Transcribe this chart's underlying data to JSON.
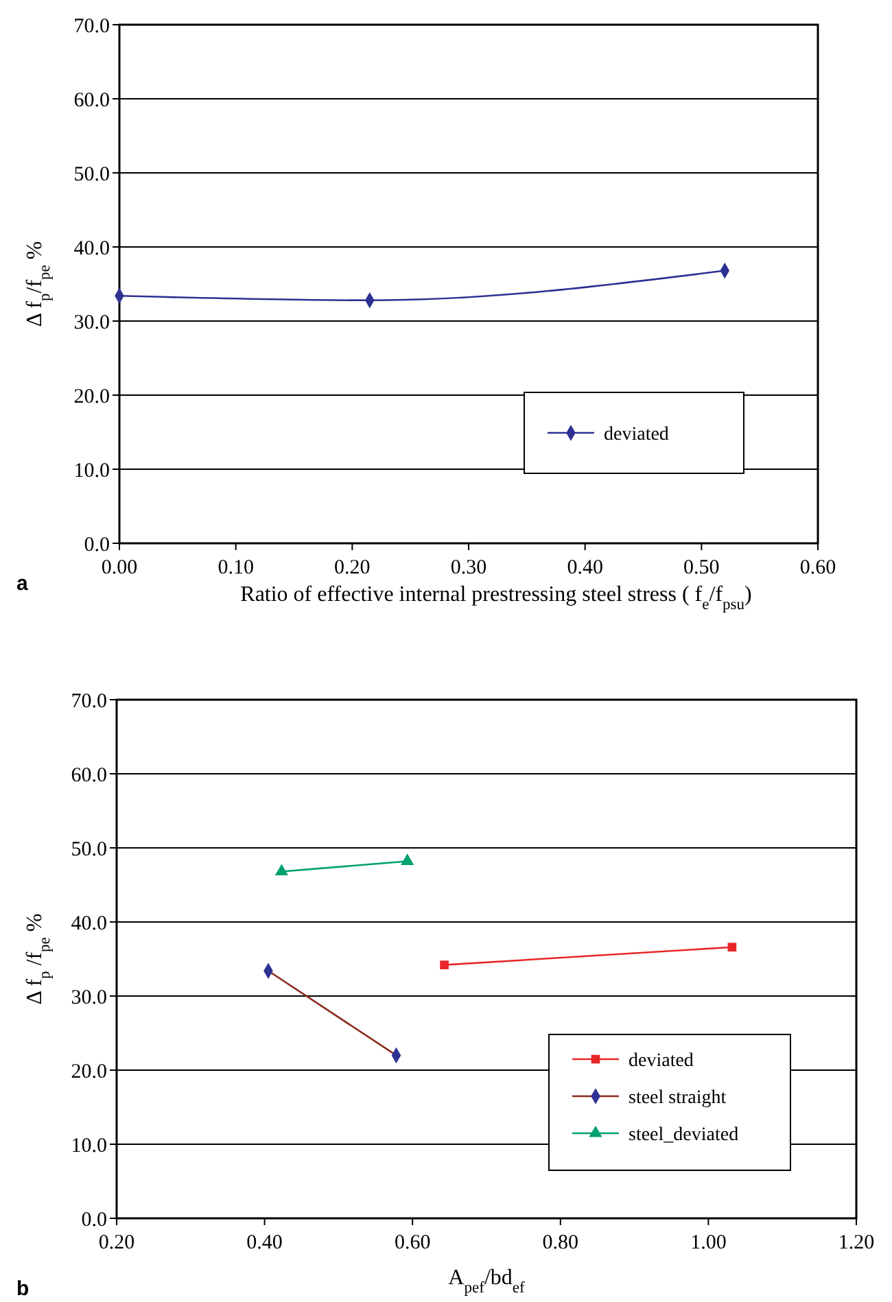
{
  "chart_data": [
    {
      "type": "line",
      "xlabel": "Ratio of effective internal prestressing steel stress ( f$_{e}$/f$_{psu}$)",
      "ylabel": "Δ f$_{p}$/f$_{pe}$ %",
      "annotations": [
        "a"
      ],
      "xlim": [
        0,
        0.6
      ],
      "xticks": [
        {
          "value": 0,
          "label": "0.00"
        },
        {
          "value": 0.1,
          "label": "0.10"
        },
        {
          "value": 0.2,
          "label": "0.20"
        },
        {
          "value": 0.3,
          "label": "0.30"
        },
        {
          "value": 0.4,
          "label": "0.40"
        },
        {
          "value": 0.5,
          "label": "0.50"
        },
        {
          "value": 0.6,
          "label": "0.60"
        }
      ],
      "ylim": [
        0,
        70
      ],
      "yticks": [
        {
          "value": 0,
          "label": "0.0"
        },
        {
          "value": 10,
          "label": "10.0"
        },
        {
          "value": 20,
          "label": "20.0"
        },
        {
          "value": 30,
          "label": "30.0"
        },
        {
          "value": 40,
          "label": "40.0"
        },
        {
          "value": 50,
          "label": "50.0"
        },
        {
          "value": 60,
          "label": "60.0"
        },
        {
          "value": 70,
          "label": "70.0"
        }
      ],
      "grid": "y",
      "legend": "bottom right",
      "series": [
        {
          "name": "deviated",
          "color": "#2e3192",
          "marker": "diamond",
          "x": [
            0,
            0.215,
            0.52
          ],
          "values": [
            33.4,
            32.8,
            36.8
          ]
        }
      ]
    },
    {
      "type": "line",
      "xlabel": "A$_{pef}$/bd$_{ef}$",
      "ylabel": "Δ f$_{p}$ /f$_{pe}$ %",
      "annotations": [
        "b"
      ],
      "xlim": [
        0.2,
        1.2
      ],
      "xticks": [
        {
          "value": 0.2,
          "label": "0.20"
        },
        {
          "value": 0.4,
          "label": "0.40"
        },
        {
          "value": 0.6,
          "label": "0.60"
        },
        {
          "value": 0.8,
          "label": "0.80"
        },
        {
          "value": 1,
          "label": "1.00"
        },
        {
          "value": 1.2,
          "label": "1.20"
        }
      ],
      "ylim": [
        0,
        70
      ],
      "yticks": [
        {
          "value": 0,
          "label": "0.0"
        },
        {
          "value": 10,
          "label": "10.0"
        },
        {
          "value": 20,
          "label": "20.0"
        },
        {
          "value": 30,
          "label": "30.0"
        },
        {
          "value": 40,
          "label": "40.0"
        },
        {
          "value": 50,
          "label": "50.0"
        },
        {
          "value": 60,
          "label": "60.0"
        },
        {
          "value": 70,
          "label": "70.0"
        }
      ],
      "grid": "y",
      "legend": "bottom right",
      "series": [
        {
          "name": "deviated",
          "color": "#e8262a",
          "marker": "square",
          "x": [
            0.643,
            1.032
          ],
          "values": [
            34.2,
            36.6
          ]
        },
        {
          "name": "steel straight",
          "color": "#8b2a1a",
          "colors": [
            "#2e3192",
            "#2e3192"
          ],
          "marker": "diamond",
          "x": [
            0.405,
            0.578
          ],
          "values": [
            33.4,
            22.0
          ]
        },
        {
          "name": "steel_deviated",
          "color": "#00a070",
          "marker": "triangle",
          "x": [
            0.423,
            0.593
          ],
          "values": [
            46.8,
            48.2
          ]
        }
      ]
    }
  ]
}
